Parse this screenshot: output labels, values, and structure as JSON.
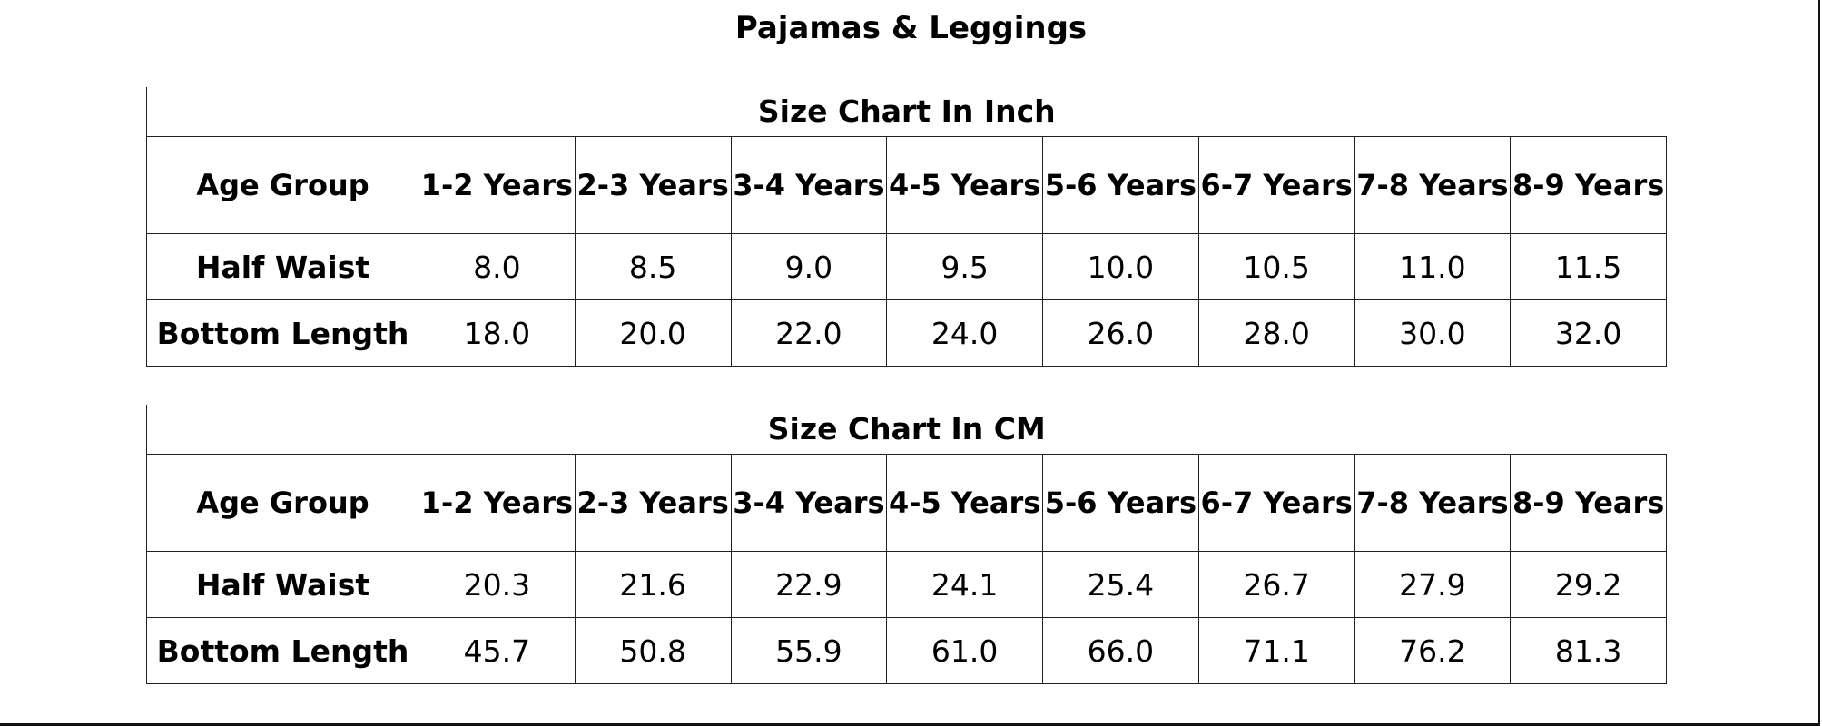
{
  "title": "Pajamas & Leggings",
  "tables": [
    {
      "caption": "Size Chart In Inch",
      "header_label": "Age Group",
      "columns": [
        "1-2 Years",
        "2-3 Years",
        "3-4 Years",
        "4-5 Years",
        "5-6 Years",
        "6-7 Years",
        "7-8 Years",
        "8-9 Years"
      ],
      "rows": [
        {
          "label": "Half Waist",
          "values": [
            "8.0",
            "8.5",
            "9.0",
            "9.5",
            "10.0",
            "10.5",
            "11.0",
            "11.5"
          ]
        },
        {
          "label": "Bottom Length",
          "values": [
            "18.0",
            "20.0",
            "22.0",
            "24.0",
            "26.0",
            "28.0",
            "30.0",
            "32.0"
          ]
        }
      ]
    },
    {
      "caption": "Size Chart In CM",
      "header_label": "Age Group",
      "columns": [
        "1-2 Years",
        "2-3 Years",
        "3-4 Years",
        "4-5 Years",
        "5-6 Years",
        "6-7 Years",
        "7-8 Years",
        "8-9 Years"
      ],
      "rows": [
        {
          "label": "Half Waist",
          "values": [
            "20.3",
            "21.6",
            "22.9",
            "24.1",
            "25.4",
            "26.7",
            "27.9",
            "29.2"
          ]
        },
        {
          "label": "Bottom Length",
          "values": [
            "45.7",
            "50.8",
            "55.9",
            "61.0",
            "66.0",
            "71.1",
            "76.2",
            "81.3"
          ]
        }
      ]
    }
  ]
}
